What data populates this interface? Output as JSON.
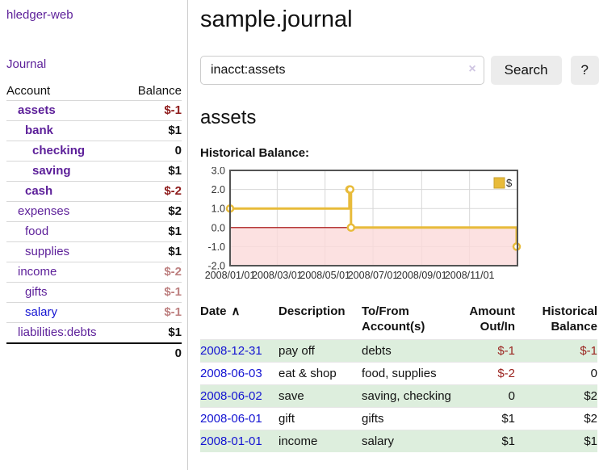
{
  "colors": {
    "link_purple": "#5c1f99",
    "link_blue": "#1414d2",
    "negative_strong": "#8e1b1b",
    "negative_soft": "#bd7f7f",
    "row_green": "#ddeedd",
    "chart_line": "#e8bb3a",
    "chart_zero_line": "#a40000",
    "chart_negative_fill": "#fbd9d9",
    "chart_border": "#545454",
    "button_bg": "#ececec"
  },
  "sidebar": {
    "brand": "hledger-web",
    "journal_link": "Journal",
    "accounts_table": {
      "account_header": "Account",
      "balance_header": "Balance",
      "rows": [
        {
          "name": "assets",
          "depth": 1,
          "bold": true,
          "link": "purple",
          "balance": "$-1",
          "bal_class": "neg-strong"
        },
        {
          "name": "bank",
          "depth": 2,
          "bold": true,
          "link": "purple",
          "balance": "$1",
          "bal_class": "pos"
        },
        {
          "name": "checking",
          "depth": 3,
          "bold": true,
          "link": "purple",
          "balance": "0",
          "bal_class": "pos"
        },
        {
          "name": "saving",
          "depth": 3,
          "bold": true,
          "link": "purple",
          "balance": "$1",
          "bal_class": "pos"
        },
        {
          "name": "cash",
          "depth": 2,
          "bold": true,
          "link": "purple",
          "balance": "$-2",
          "bal_class": "neg-strong"
        },
        {
          "name": "expenses",
          "depth": 1,
          "bold": false,
          "link": "purple",
          "balance": "$2",
          "bal_class": "pos"
        },
        {
          "name": "food",
          "depth": 2,
          "bold": false,
          "link": "purple",
          "balance": "$1",
          "bal_class": "pos"
        },
        {
          "name": "supplies",
          "depth": 2,
          "bold": false,
          "link": "purple",
          "balance": "$1",
          "bal_class": "pos"
        },
        {
          "name": "income",
          "depth": 1,
          "bold": false,
          "link": "purple",
          "balance": "$-2",
          "bal_class": "neg-soft"
        },
        {
          "name": "gifts",
          "depth": 2,
          "bold": false,
          "link": "purple",
          "balance": "$-1",
          "bal_class": "neg-soft"
        },
        {
          "name": "salary",
          "depth": 2,
          "bold": false,
          "link": "blue",
          "balance": "$-1",
          "bal_class": "neg-soft"
        },
        {
          "name": "liabilities:debts",
          "depth": 1,
          "bold": false,
          "link": "purple",
          "balance": "$1",
          "bal_class": "pos"
        }
      ],
      "total": "0"
    }
  },
  "main": {
    "title": "sample.journal",
    "search": {
      "value": "inacct:assets",
      "clear_icon": "×",
      "button_label": "Search",
      "help_label": "?"
    },
    "account_heading": "assets"
  },
  "chart_data": {
    "type": "line",
    "step": true,
    "title": "Historical Balance:",
    "legend": {
      "label": "$",
      "position": "top-right"
    },
    "series": [
      {
        "name": "$",
        "color": "#e8bb3a",
        "points": [
          [
            "2008-01-01",
            1
          ],
          [
            "2008-06-01",
            2
          ],
          [
            "2008-06-02",
            2
          ],
          [
            "2008-06-03",
            0
          ],
          [
            "2008-12-31",
            -1
          ]
        ]
      }
    ],
    "x_range": [
      "2008-01-01",
      "2009-01-01"
    ],
    "x_ticks": [
      {
        "date": "2008-01-01",
        "label": "2008/01/01"
      },
      {
        "date": "2008-03-01",
        "label": "2008/03/01"
      },
      {
        "date": "2008-05-01",
        "label": "2008/05/01"
      },
      {
        "date": "2008-07-01",
        "label": "2008/07/01"
      },
      {
        "date": "2008-09-01",
        "label": "2008/09/01"
      },
      {
        "date": "2008-11-01",
        "label": "2008/11/01"
      }
    ],
    "y_ticks": [
      3.0,
      2.0,
      1.0,
      0.0,
      -1.0,
      -2.0
    ],
    "ylim": [
      -2,
      3
    ],
    "grid": true,
    "negative_region": true
  },
  "register_table": {
    "headers": [
      {
        "label": "Date",
        "sort_icon": "∧",
        "align": "left"
      },
      {
        "label": "Description",
        "align": "left"
      },
      {
        "label": "To/From Account(s)",
        "align": "left"
      },
      {
        "label": "Amount Out/In",
        "align": "right"
      },
      {
        "label": "Historical Balance",
        "align": "right"
      }
    ],
    "rows": [
      {
        "date": "2008-12-31",
        "description": "pay off",
        "accounts": "debts",
        "amount": "$-1",
        "amount_neg": true,
        "balance": "$-1",
        "balance_neg": true,
        "shaded": true
      },
      {
        "date": "2008-06-03",
        "description": "eat & shop",
        "accounts": "food, supplies",
        "amount": "$-2",
        "amount_neg": true,
        "balance": "0",
        "balance_neg": false,
        "shaded": false
      },
      {
        "date": "2008-06-02",
        "description": "save",
        "accounts": "saving, checking",
        "amount": "0",
        "amount_neg": false,
        "balance": "$2",
        "balance_neg": false,
        "shaded": true
      },
      {
        "date": "2008-06-01",
        "description": "gift",
        "accounts": "gifts",
        "amount": "$1",
        "amount_neg": false,
        "balance": "$2",
        "balance_neg": false,
        "shaded": false
      },
      {
        "date": "2008-01-01",
        "description": "income",
        "accounts": "salary",
        "amount": "$1",
        "amount_neg": false,
        "balance": "$1",
        "balance_neg": false,
        "shaded": true
      }
    ]
  }
}
